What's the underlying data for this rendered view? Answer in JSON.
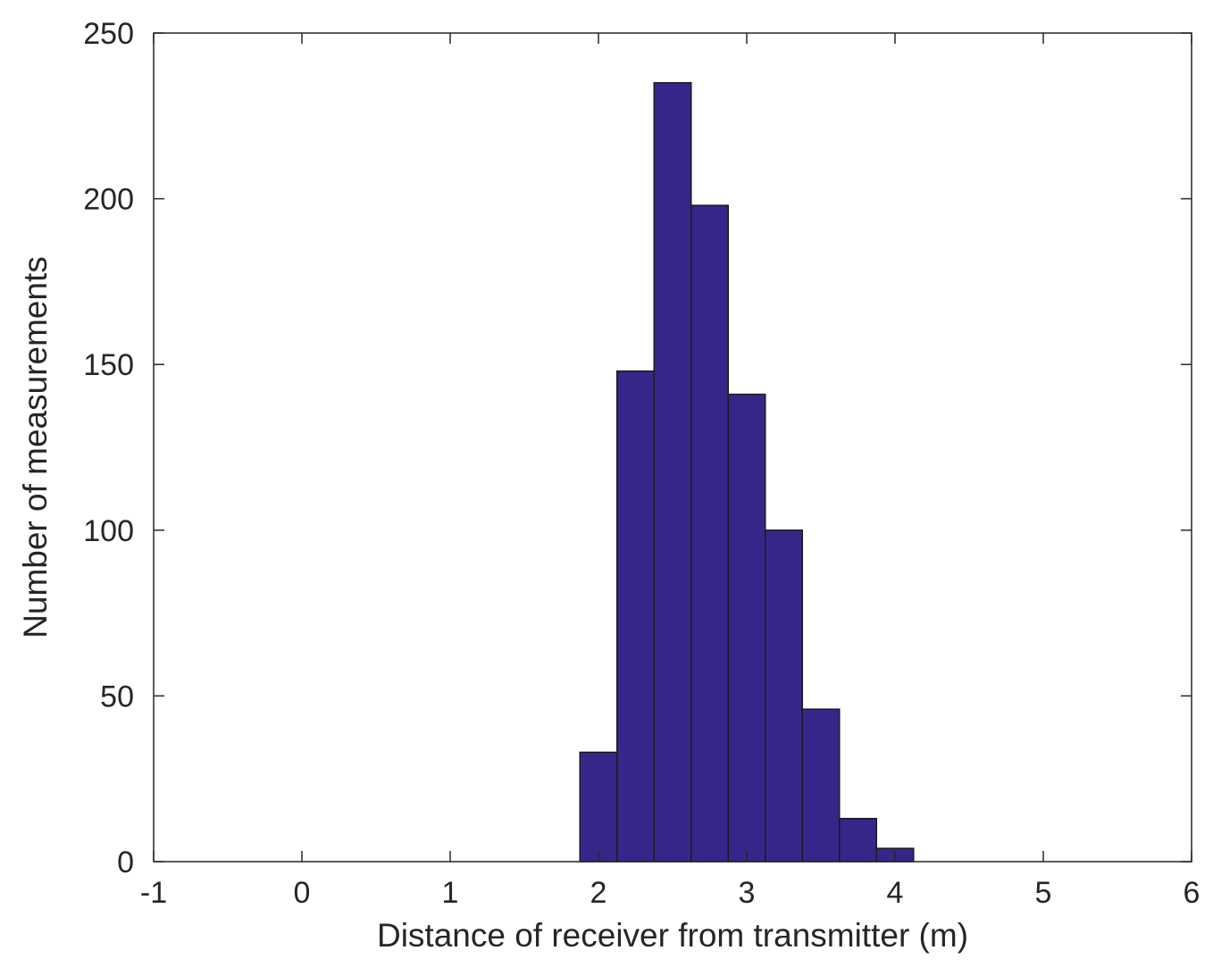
{
  "chart_data": {
    "type": "bar",
    "title": "",
    "xlabel": "Distance of receiver from transmitter (m)",
    "ylabel": "Number of measurements",
    "xlim": [
      -1,
      6
    ],
    "ylim": [
      0,
      250
    ],
    "xticks": [
      -1,
      0,
      1,
      2,
      3,
      4,
      5,
      6
    ],
    "yticks": [
      0,
      50,
      100,
      150,
      200,
      250
    ],
    "xtick_labels": [
      "-1",
      "0",
      "1",
      "2",
      "3",
      "4",
      "5",
      "6"
    ],
    "ytick_labels": [
      "0",
      "50",
      "100",
      "150",
      "200",
      "250"
    ],
    "grid": false,
    "bin_edges": [
      -0.125,
      0.125,
      0.375,
      0.625,
      0.875,
      1.125,
      1.375,
      1.625,
      1.875,
      2.125,
      2.375,
      2.625,
      2.875,
      3.125,
      3.375,
      3.625,
      3.875,
      4.125,
      4.375,
      4.625,
      4.875,
      5.125
    ],
    "values": [
      0,
      0,
      0,
      0,
      0,
      0,
      0,
      0,
      33,
      148,
      235,
      198,
      141,
      100,
      46,
      13,
      4,
      0,
      0,
      0,
      0
    ],
    "bar_color": "#35278a",
    "edge_color": "#1a1a1a"
  }
}
